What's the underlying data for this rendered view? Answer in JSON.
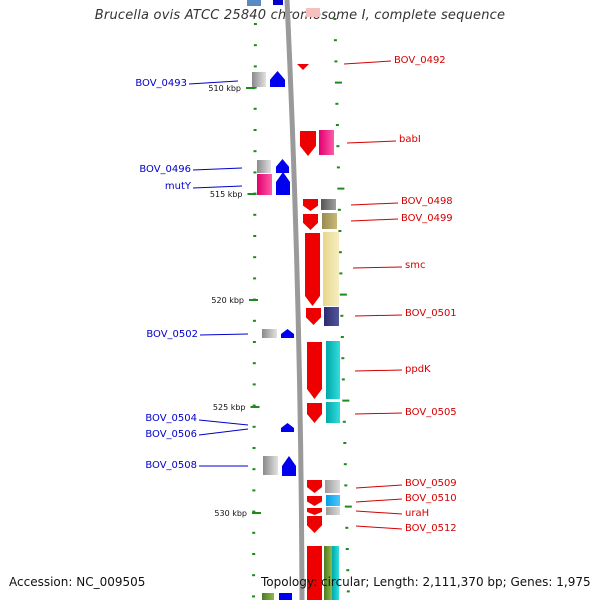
{
  "title": "Brucella ovis ATCC 25840 chromosome I, complete sequence",
  "footer": {
    "accession": "Accession: NC_009505",
    "topology": "Topology: circular; Length: 2,111,370 bp; Genes: 1,975"
  },
  "colors": {
    "left_label": "#0000cc",
    "right_label": "#d40000",
    "backbone": "#9a9a9a",
    "tick": "#1e8a1e",
    "arrow_red": "#ee0000",
    "arrow_blue": "#0000ee"
  },
  "ticks": [
    {
      "label": "510 kbp"
    },
    {
      "label": "515 kbp"
    },
    {
      "label": "520 kbp"
    },
    {
      "label": "525 kbp"
    },
    {
      "label": "530 kbp"
    }
  ],
  "left_genes": [
    {
      "label": "BOV_0493"
    },
    {
      "label": "BOV_0496"
    },
    {
      "label": "mutY"
    },
    {
      "label": "BOV_0502"
    },
    {
      "label": "BOV_0504"
    },
    {
      "label": "BOV_0506"
    },
    {
      "label": "BOV_0508"
    }
  ],
  "right_genes": [
    {
      "label": "BOV_0492"
    },
    {
      "label": "babI"
    },
    {
      "label": "BOV_0498"
    },
    {
      "label": "BOV_0499"
    },
    {
      "label": "smc"
    },
    {
      "label": "BOV_0501"
    },
    {
      "label": "ppdK"
    },
    {
      "label": "BOV_0505"
    },
    {
      "label": "BOV_0509"
    },
    {
      "label": "BOV_0510"
    },
    {
      "label": "uraH"
    },
    {
      "label": "BOV_0512"
    }
  ]
}
